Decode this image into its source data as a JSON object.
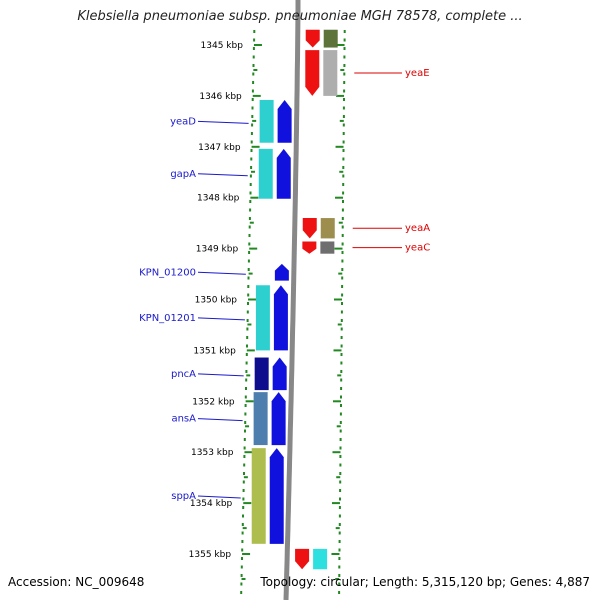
{
  "title": "Klebsiella pneumoniae subsp. pneumoniae MGH 78578, complete ...",
  "accession": "Accession: NC_009648",
  "topology": "Topology: circular; Length: 5,315,120 bp; Genes: 4,887",
  "colors": {
    "forward_label": "#1a1acc",
    "reverse_label": "#dd0000",
    "ruler": "#228822",
    "backbone": "#888888"
  },
  "kbp_ticks": [
    {
      "kbp": 1345,
      "label": "1345 kbp"
    },
    {
      "kbp": 1346,
      "label": "1346 kbp"
    },
    {
      "kbp": 1347,
      "label": "1347 kbp"
    },
    {
      "kbp": 1348,
      "label": "1348 kbp"
    },
    {
      "kbp": 1349,
      "label": "1349 kbp"
    },
    {
      "kbp": 1350,
      "label": "1350 kbp"
    },
    {
      "kbp": 1351,
      "label": "1351 kbp"
    },
    {
      "kbp": 1352,
      "label": "1352 kbp"
    },
    {
      "kbp": 1353,
      "label": "1353 kbp"
    },
    {
      "kbp": 1354,
      "label": "1354 kbp"
    },
    {
      "kbp": 1355,
      "label": "1355 kbp"
    }
  ],
  "genes_forward": [
    {
      "label": "yeaD",
      "start": 1346.08,
      "end": 1346.92,
      "color": "#22cccc"
    },
    {
      "label": "gapA",
      "start": 1347.04,
      "end": 1348.02,
      "color": "#22cccc"
    },
    {
      "label": "KPN_01200",
      "start": 1349.3,
      "end": 1349.63,
      "color": "#3399ff"
    },
    {
      "label": "KPN_01201",
      "start": 1349.72,
      "end": 1351.0,
      "color": "#22cccc"
    },
    {
      "label": "pncA",
      "start": 1351.14,
      "end": 1351.78,
      "color": "#000088"
    },
    {
      "label": "ansA",
      "start": 1351.82,
      "end": 1352.86,
      "color": "#4477aa"
    },
    {
      "label": "sppA",
      "start": 1352.92,
      "end": 1354.8,
      "color": "#aabb44"
    }
  ],
  "genes_reverse": [
    {
      "label": "",
      "start": 1344.7,
      "end": 1345.05,
      "color": "#556b2f"
    },
    {
      "label": "yeaE",
      "start": 1345.1,
      "end": 1346.0,
      "color": "#aaaaaa"
    },
    {
      "label": "yeaA",
      "start": 1348.4,
      "end": 1348.8,
      "color": "#998844"
    },
    {
      "label": "yeaC",
      "start": 1348.86,
      "end": 1349.1,
      "color": "#666666"
    },
    {
      "label": "",
      "start": 1354.9,
      "end": 1355.3,
      "color": "#22dddd"
    }
  ]
}
